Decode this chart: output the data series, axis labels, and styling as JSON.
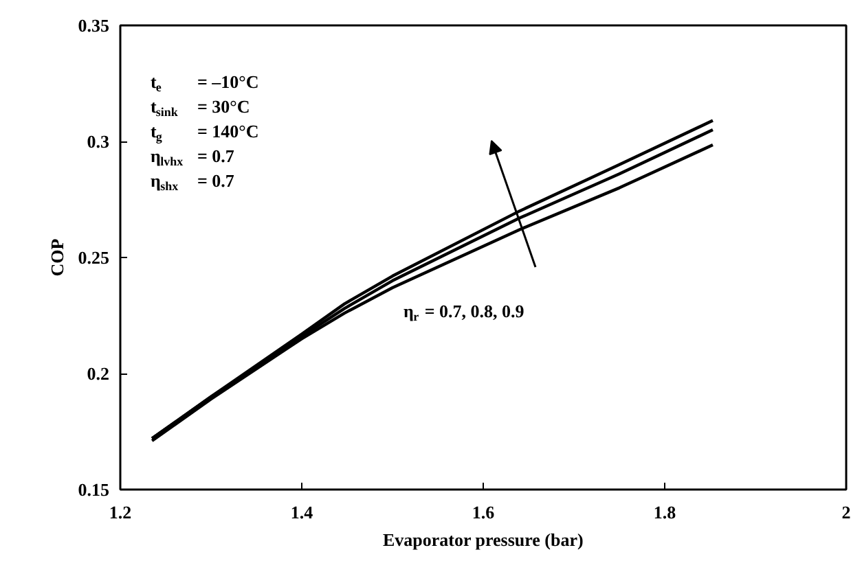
{
  "chart_data": {
    "type": "line",
    "xlabel": "Evaporator pressure (bar)",
    "ylabel": "COP",
    "x": [
      1.235,
      1.3,
      1.4,
      1.447,
      1.5,
      1.64,
      1.75,
      1.853
    ],
    "series": [
      {
        "color": "#000000",
        "values": [
          0.172,
          0.19,
          0.217,
          0.23,
          0.242,
          0.27,
          0.29,
          0.309
        ]
      },
      {
        "color": "#000000",
        "values": [
          0.172,
          0.19,
          0.216,
          0.228,
          0.24,
          0.267,
          0.286,
          0.305
        ]
      },
      {
        "color": "#000000",
        "values": [
          0.171,
          0.189,
          0.215,
          0.226,
          0.237,
          0.262,
          0.28,
          0.2985
        ]
      }
    ],
    "xlim": [
      1.2,
      2
    ],
    "ylim": [
      0.15,
      0.35
    ],
    "xticks": [
      1.2,
      1.4,
      1.6,
      1.8,
      2
    ],
    "yticks": [
      0.15,
      0.2,
      0.25,
      0.3,
      0.35
    ],
    "grid": false,
    "marker": "none",
    "line_style": "solid",
    "annotations": [
      "t$_{e}$ = –10°C",
      "t$_{sink}$ = 30°C",
      "t$_{g}$ = 140°C",
      "η$_{lvhx}$ = 0.7",
      "η$_{shx}$ = 0.7",
      "η$_{r}$ = 0.7, 0.8, 0.9"
    ]
  }
}
